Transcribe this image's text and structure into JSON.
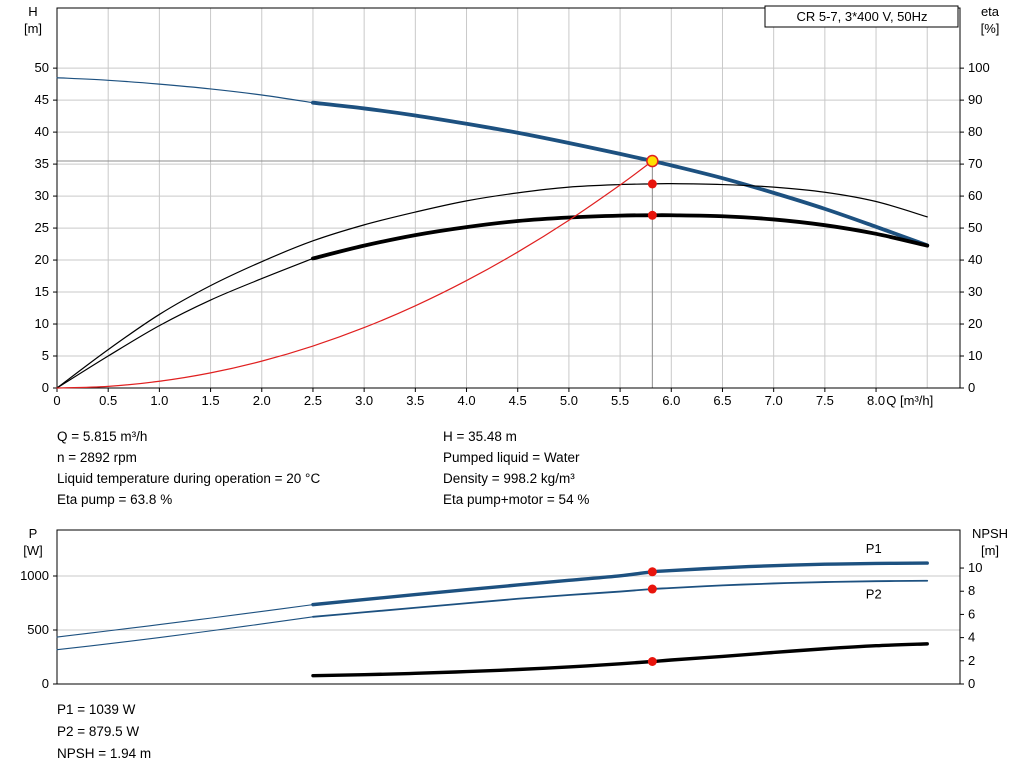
{
  "info_text": {
    "left": [
      "Q = 5.815 m³/h",
      "n = 2892 rpm",
      "Liquid temperature during operation = 20 °C",
      "Eta pump = 63.8 %"
    ],
    "right": [
      "H = 35.48 m",
      "Pumped liquid = Water",
      "Density = 998.2 kg/m³",
      "Eta pump+motor = 54 %"
    ]
  },
  "result_text": [
    "P1 = 1039 W",
    "P2 = 879.5 W",
    "NPSH = 1.94 m"
  ],
  "colors": {
    "curve_blue": "#1d5180",
    "curve_black": "#000000",
    "curve_red": "#e02020",
    "marker_red": "#e8140c",
    "marker_yellow": "#ffe000",
    "crosshair_gray": "#8c8c8c",
    "grid_gray": "#c9c9c9",
    "frame_black": "#000000"
  },
  "chart_data": [
    {
      "type": "line",
      "name": "hq-eta-chart",
      "title": "CR 5-7, 3*400 V, 50Hz",
      "x": {
        "label": "Q [m³/h]",
        "min": 0,
        "max": 8.82,
        "tick_step": 0.5,
        "tick_values": [
          0,
          0.5,
          1,
          1.5,
          2,
          2.5,
          3,
          3.5,
          4,
          4.5,
          5,
          5.5,
          6,
          6.5,
          7,
          7.5,
          8
        ],
        "tick_labels": [
          "0",
          "0.5",
          "1.0",
          "1.5",
          "2.0",
          "2.5",
          "3.0",
          "3.5",
          "4.0",
          "4.5",
          "5.0",
          "5.5",
          "6.0",
          "6.5",
          "7.0",
          "7.5",
          "8.0"
        ]
      },
      "y_left": {
        "label_lines": [
          "H",
          "[m]"
        ],
        "min": 0,
        "max": 59.4,
        "tick_values": [
          0,
          5,
          10,
          15,
          20,
          25,
          30,
          35,
          40,
          45,
          50
        ],
        "tick_labels": [
          "0",
          "5",
          "10",
          "15",
          "20",
          "25",
          "30",
          "35",
          "40",
          "45",
          "50"
        ]
      },
      "y_right": {
        "label_lines": [
          "eta",
          "[%]"
        ],
        "min": 0,
        "max": 118.8,
        "tick_values": [
          0,
          10,
          20,
          30,
          40,
          50,
          60,
          70,
          80,
          90,
          100
        ],
        "tick_labels": [
          "0",
          "10",
          "20",
          "30",
          "40",
          "50",
          "60",
          "70",
          "80",
          "90",
          "100"
        ]
      },
      "grid": {
        "vertical": true,
        "horizontal": true
      },
      "series": [
        {
          "name": "head-lead",
          "axis": "left",
          "color": "#1d5180",
          "width": 1.2,
          "points": [
            [
              0,
              48.5
            ],
            [
              0.5,
              48.1
            ],
            [
              1,
              47.5
            ],
            [
              1.5,
              46.75
            ],
            [
              2,
              45.8
            ],
            [
              2.5,
              44.6
            ]
          ]
        },
        {
          "name": "head",
          "axis": "left",
          "color": "#1d5180",
          "width": 3.8,
          "points": [
            [
              2.5,
              44.6
            ],
            [
              3,
              43.7
            ],
            [
              3.5,
              42.6
            ],
            [
              4,
              41.3
            ],
            [
              4.5,
              39.9
            ],
            [
              5,
              38.3
            ],
            [
              5.5,
              36.6
            ],
            [
              5.815,
              35.48
            ],
            [
              6,
              34.8
            ],
            [
              6.5,
              32.8
            ],
            [
              7,
              30.5
            ],
            [
              7.5,
              28
            ],
            [
              8,
              25.2
            ],
            [
              8.5,
              22.3
            ]
          ]
        },
        {
          "name": "eta-pump",
          "axis": "right",
          "color": "#000000",
          "width": 1.2,
          "points": [
            [
              0,
              0
            ],
            [
              0.5,
              12
            ],
            [
              1,
              23
            ],
            [
              1.5,
              32
            ],
            [
              2,
              39.5
            ],
            [
              2.5,
              46
            ],
            [
              3,
              51
            ],
            [
              3.5,
              55
            ],
            [
              4,
              58.5
            ],
            [
              4.5,
              61
            ],
            [
              5,
              62.8
            ],
            [
              5.5,
              63.6
            ],
            [
              5.815,
              63.8
            ],
            [
              6,
              63.9
            ],
            [
              6.5,
              63.6
            ],
            [
              7,
              62.8
            ],
            [
              7.5,
              61.2
            ],
            [
              8,
              58.3
            ],
            [
              8.5,
              53.5
            ]
          ]
        },
        {
          "name": "eta-pump-motor-lead",
          "axis": "right",
          "color": "#000000",
          "width": 1.2,
          "points": [
            [
              0,
              0
            ],
            [
              0.5,
              10
            ],
            [
              1,
              19.5
            ],
            [
              1.5,
              27.5
            ],
            [
              2,
              34.2
            ],
            [
              2.5,
              40.5
            ]
          ]
        },
        {
          "name": "eta-pump-motor",
          "axis": "right",
          "color": "#000000",
          "width": 3.8,
          "points": [
            [
              2.5,
              40.5
            ],
            [
              3,
              44.5
            ],
            [
              3.5,
              47.8
            ],
            [
              4,
              50.3
            ],
            [
              4.5,
              52.2
            ],
            [
              5,
              53.3
            ],
            [
              5.5,
              53.9
            ],
            [
              5.815,
              54
            ],
            [
              6,
              54
            ],
            [
              6.5,
              53.7
            ],
            [
              7,
              52.7
            ],
            [
              7.5,
              50.9
            ],
            [
              8,
              48.2
            ],
            [
              8.5,
              44.5
            ]
          ]
        },
        {
          "name": "system-curve",
          "axis": "left",
          "color": "#e02020",
          "width": 1.2,
          "points": [
            [
              0,
              0
            ],
            [
              0.5,
              0.26
            ],
            [
              1,
              1.05
            ],
            [
              1.5,
              2.36
            ],
            [
              2,
              4.2
            ],
            [
              2.5,
              6.56
            ],
            [
              3,
              9.44
            ],
            [
              3.5,
              12.85
            ],
            [
              4,
              16.79
            ],
            [
              4.5,
              21.25
            ],
            [
              5,
              26.23
            ],
            [
              5.5,
              31.74
            ],
            [
              5.815,
              35.48
            ]
          ]
        }
      ],
      "crosshair": {
        "x": 5.815,
        "value": 35.48,
        "axis": "left"
      },
      "markers": [
        {
          "name": "duty-point",
          "x": 5.815,
          "value": 35.48,
          "axis": "left",
          "r": 5.5,
          "fill": "#ffe000",
          "stroke": "#e02020",
          "stroke_width": 1.5
        },
        {
          "name": "eta-pump-point",
          "x": 5.815,
          "value": 63.8,
          "axis": "right",
          "r": 4.5,
          "fill": "#e8140c"
        },
        {
          "name": "eta-pump-motor-point",
          "x": 5.815,
          "value": 54,
          "axis": "right",
          "r": 4.5,
          "fill": "#e8140c"
        }
      ]
    },
    {
      "type": "line",
      "name": "power-npsh-chart",
      "x": {
        "min": 0,
        "max": 8.82,
        "tick_step": 0.5
      },
      "y_left": {
        "label_lines": [
          "P",
          "[W]"
        ],
        "min": 0,
        "max": 1426,
        "tick_values": [
          0,
          500,
          1000
        ],
        "tick_labels": [
          "0",
          "500",
          "1000"
        ]
      },
      "y_right": {
        "label_lines": [
          "NPSH",
          "[m]"
        ],
        "min": 0,
        "max": 13.28,
        "tick_values": [
          0,
          2,
          4,
          6,
          8,
          10
        ],
        "tick_labels": [
          "0",
          "2",
          "4",
          "6",
          "8",
          "10"
        ]
      },
      "grid": {
        "vertical": false,
        "horizontal": true
      },
      "series": [
        {
          "name": "p1-lead",
          "axis": "left",
          "color": "#1d5180",
          "width": 1.1,
          "points": [
            [
              0,
              435
            ],
            [
              0.5,
              492
            ],
            [
              1,
              550
            ],
            [
              1.5,
              610
            ],
            [
              2,
              672
            ],
            [
              2.5,
              735
            ]
          ]
        },
        {
          "name": "p1",
          "axis": "left",
          "color": "#1d5180",
          "width": 3.4,
          "points": [
            [
              2.5,
              735
            ],
            [
              3,
              782
            ],
            [
              3.5,
              828
            ],
            [
              4,
              873
            ],
            [
              4.5,
              917
            ],
            [
              5,
              960
            ],
            [
              5.5,
              1002
            ],
            [
              5.815,
              1039
            ],
            [
              6,
              1050
            ],
            [
              6.5,
              1076
            ],
            [
              7,
              1096
            ],
            [
              7.5,
              1109
            ],
            [
              8,
              1116
            ],
            [
              8.5,
              1120
            ]
          ]
        },
        {
          "name": "p2-lead",
          "axis": "left",
          "color": "#1d5180",
          "width": 1.1,
          "points": [
            [
              0,
              318
            ],
            [
              0.5,
              372
            ],
            [
              1,
              430
            ],
            [
              1.5,
              492
            ],
            [
              2,
              556
            ],
            [
              2.5,
              622
            ]
          ]
        },
        {
          "name": "p2",
          "axis": "left",
          "color": "#1d5180",
          "width": 1.8,
          "points": [
            [
              2.5,
              622
            ],
            [
              3,
              664
            ],
            [
              3.5,
              706
            ],
            [
              4,
              748
            ],
            [
              4.5,
              789
            ],
            [
              5,
              824
            ],
            [
              5.5,
              856
            ],
            [
              5.815,
              879.5
            ],
            [
              6,
              889
            ],
            [
              6.5,
              913
            ],
            [
              7,
              931
            ],
            [
              7.5,
              944
            ],
            [
              8,
              952
            ],
            [
              8.5,
              956
            ]
          ]
        },
        {
          "name": "npsh",
          "axis": "right",
          "color": "#000000",
          "width": 3.4,
          "points": [
            [
              2.5,
              0.72
            ],
            [
              3,
              0.8
            ],
            [
              3.5,
              0.92
            ],
            [
              4,
              1.07
            ],
            [
              4.5,
              1.25
            ],
            [
              5,
              1.47
            ],
            [
              5.5,
              1.74
            ],
            [
              5.815,
              1.94
            ],
            [
              6,
              2.07
            ],
            [
              6.5,
              2.38
            ],
            [
              7,
              2.72
            ],
            [
              7.5,
              3.04
            ],
            [
              8,
              3.3
            ],
            [
              8.5,
              3.46
            ]
          ]
        }
      ],
      "series_labels": [
        {
          "text": "P1",
          "x": 7.9,
          "value": 1250,
          "axis": "left",
          "color": "#1d5180"
        },
        {
          "text": "P2",
          "x": 7.9,
          "value": 830,
          "axis": "left",
          "color": "#1d5180"
        }
      ],
      "markers": [
        {
          "name": "p1-point",
          "x": 5.815,
          "value": 1039,
          "axis": "left",
          "r": 4.5,
          "fill": "#e8140c"
        },
        {
          "name": "p2-point",
          "x": 5.815,
          "value": 879.5,
          "axis": "left",
          "r": 4.5,
          "fill": "#e8140c"
        },
        {
          "name": "npsh-point",
          "x": 5.815,
          "value": 1.94,
          "axis": "right",
          "r": 4.5,
          "fill": "#e8140c"
        }
      ]
    }
  ]
}
